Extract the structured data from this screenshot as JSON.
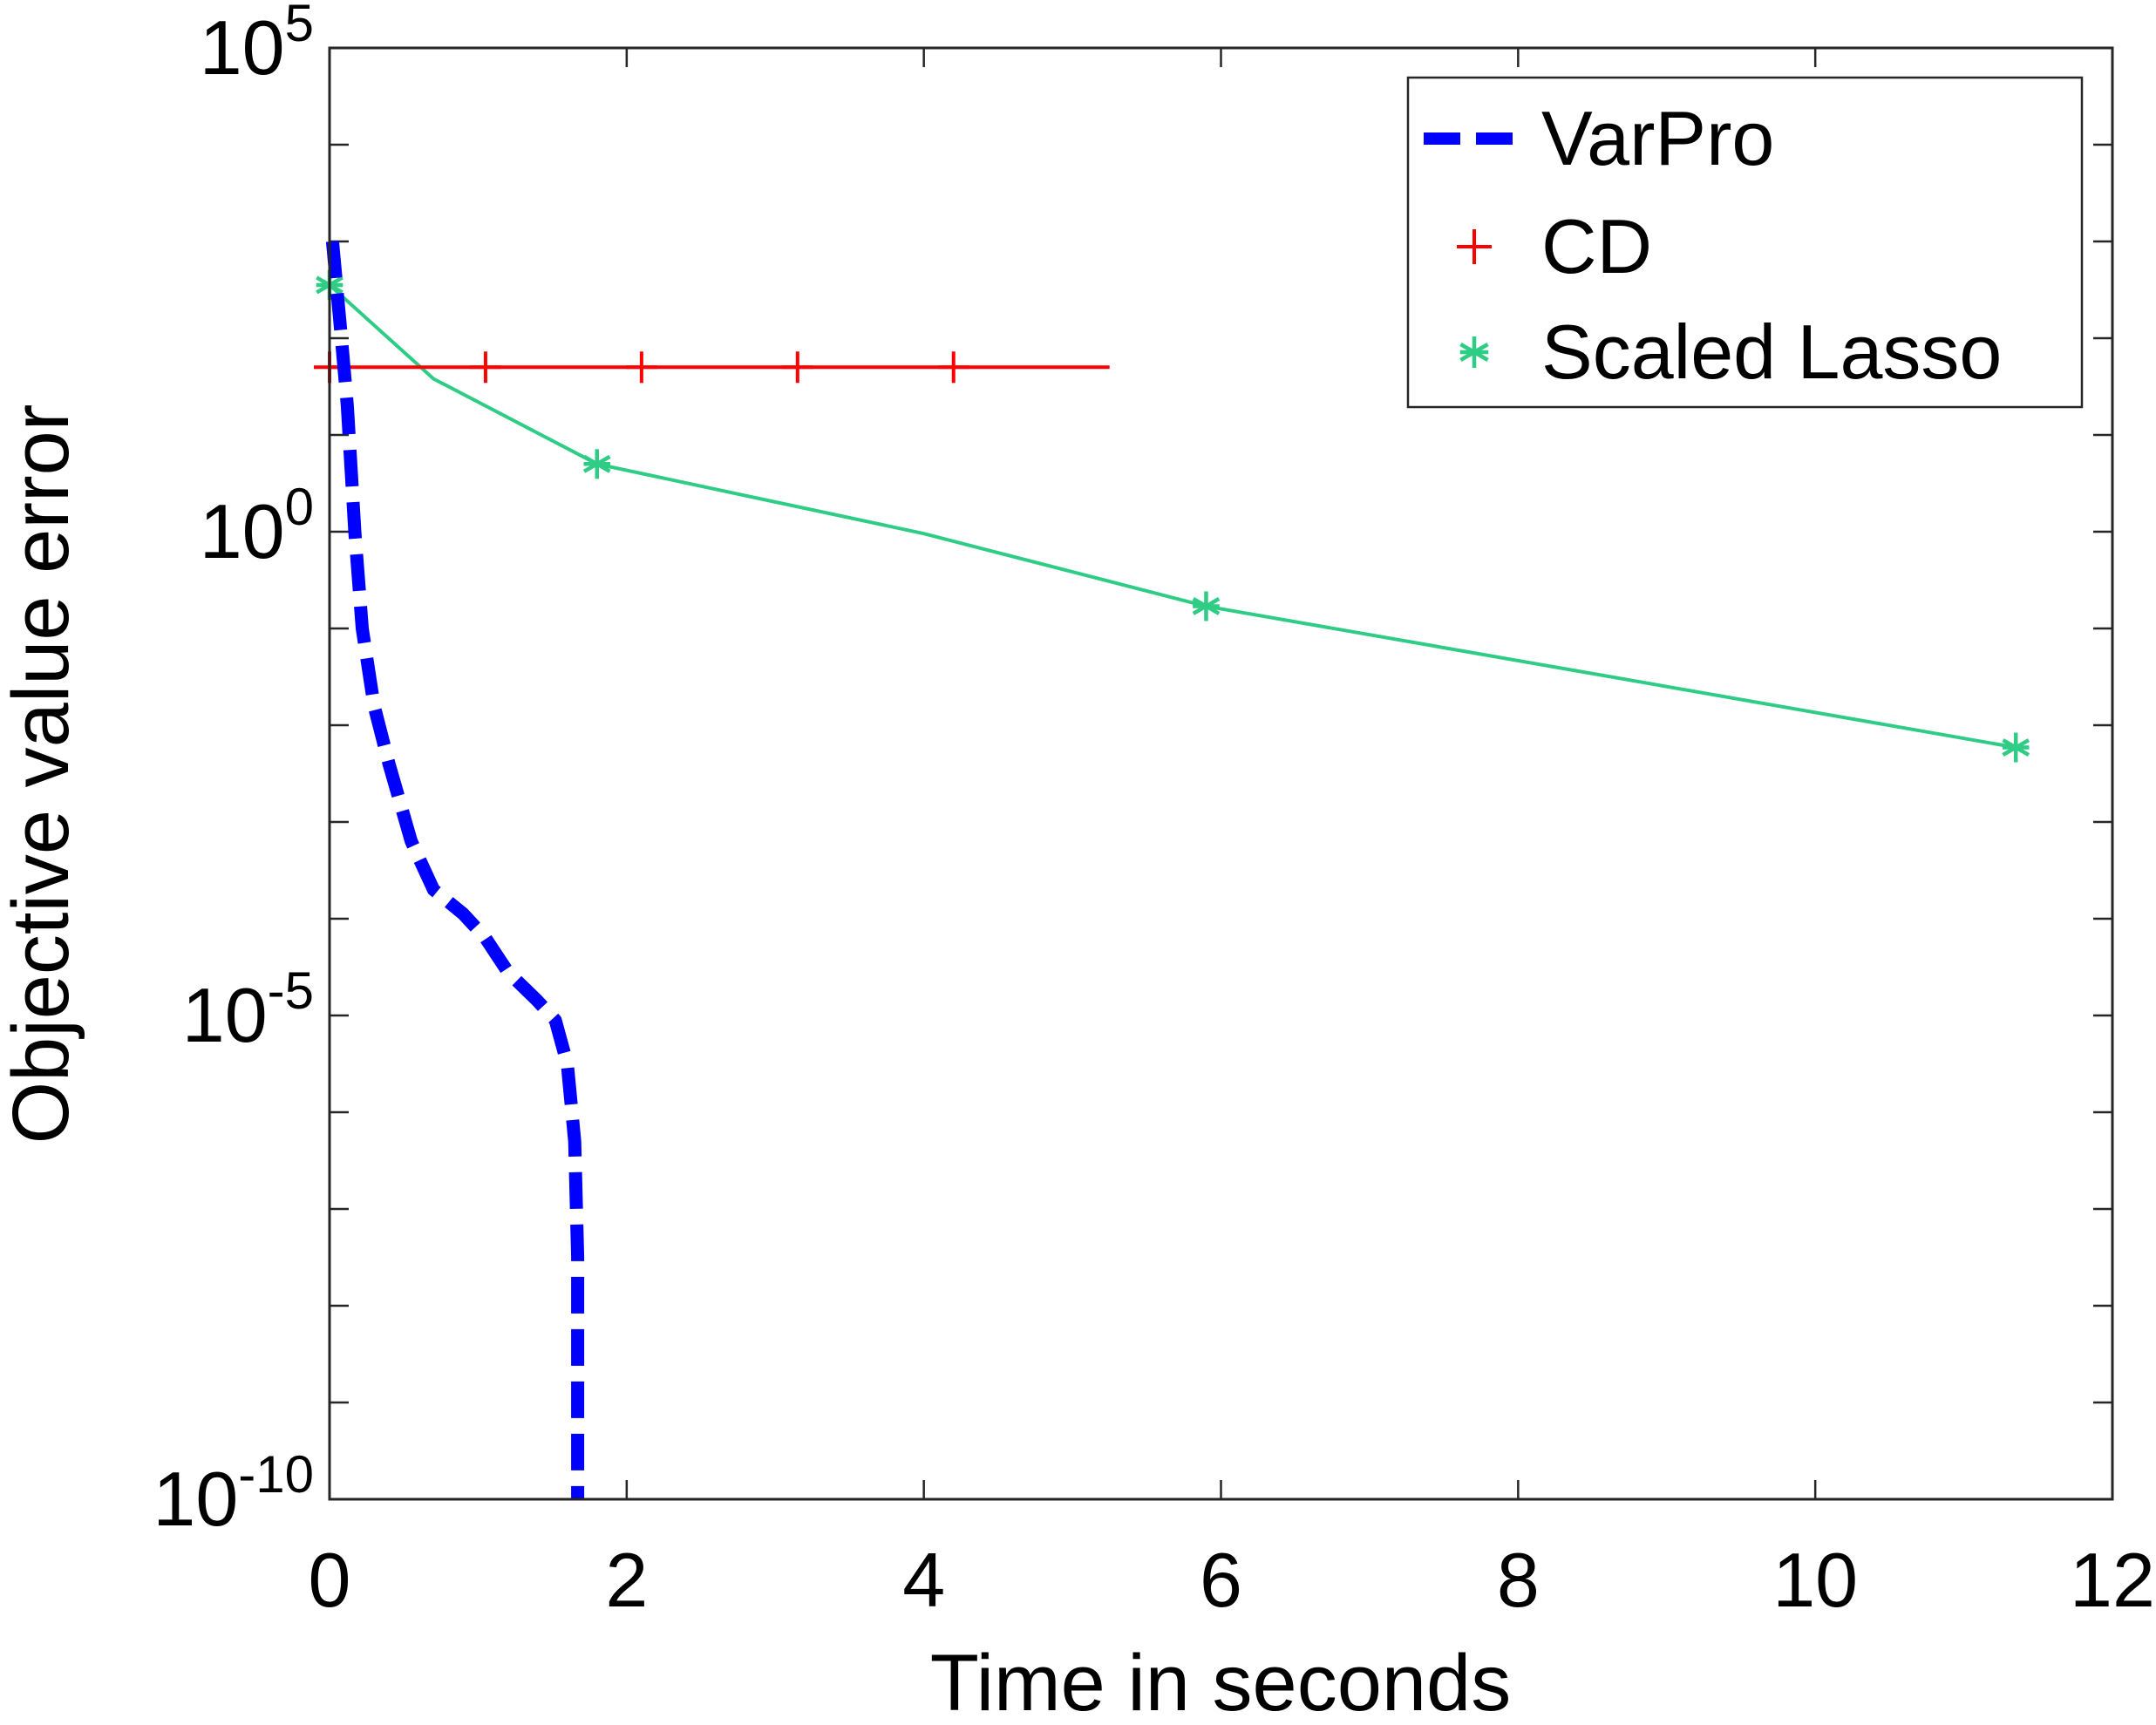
{
  "chart_data": {
    "type": "line",
    "title": "",
    "xlabel": "Time in seconds",
    "ylabel": "Objective value error",
    "xlim": [
      0,
      12
    ],
    "ylim_log10": [
      -10,
      5
    ],
    "yscale": "log",
    "x_ticks": [
      0,
      2,
      4,
      6,
      8,
      10,
      12
    ],
    "x_tick_labels": [
      "0",
      "2",
      "4",
      "6",
      "8",
      "10",
      "12"
    ],
    "y_ticks": [
      {
        "base": "10",
        "exp": "5",
        "log10": 5
      },
      {
        "base": "10",
        "exp": "0",
        "log10": 0
      },
      {
        "base": "10",
        "exp": "-5",
        "log10": -5
      },
      {
        "base": "10",
        "exp": "-10",
        "log10": -10
      }
    ],
    "legend_position": "top-right",
    "series": [
      {
        "name": "VarPro",
        "color": "#0000ff",
        "style": "dashed-thick",
        "marker": "none",
        "points": [
          [
            0.02,
            3.0
          ],
          [
            0.05,
            2.5
          ],
          [
            0.08,
            2.0
          ],
          [
            0.12,
            1.3
          ],
          [
            0.17,
            0.0
          ],
          [
            0.22,
            -1.0
          ],
          [
            0.3,
            -1.8
          ],
          [
            0.4,
            -2.4
          ],
          [
            0.55,
            -3.2
          ],
          [
            0.7,
            -3.7
          ],
          [
            0.9,
            -3.95
          ],
          [
            1.05,
            -4.2
          ],
          [
            1.2,
            -4.55
          ],
          [
            1.4,
            -4.85
          ],
          [
            1.52,
            -5.05
          ],
          [
            1.6,
            -5.5
          ],
          [
            1.65,
            -6.3
          ],
          [
            1.67,
            -7.5
          ],
          [
            1.67,
            -9.0
          ],
          [
            1.67,
            -10.0
          ]
        ]
      },
      {
        "name": "CD",
        "color": "#ff0000",
        "style": "solid",
        "marker": "plus",
        "points": [
          [
            0.0,
            1.7
          ],
          [
            1.05,
            1.7
          ],
          [
            2.1,
            1.7
          ],
          [
            3.15,
            1.7
          ],
          [
            4.2,
            1.7
          ],
          [
            5.25,
            1.7
          ]
        ],
        "marker_points": [
          [
            0.0,
            1.7
          ],
          [
            1.05,
            1.7
          ],
          [
            2.1,
            1.7
          ],
          [
            3.15,
            1.7
          ],
          [
            4.2,
            1.7
          ]
        ]
      },
      {
        "name": "Scaled Lasso",
        "color": "#2ecc84",
        "style": "solid",
        "marker": "asterisk",
        "points": [
          [
            0.0,
            2.55
          ],
          [
            0.7,
            1.58
          ],
          [
            1.8,
            0.7
          ],
          [
            4.0,
            -0.02
          ],
          [
            5.9,
            -0.77
          ],
          [
            11.35,
            -2.23
          ]
        ],
        "marker_points": [
          [
            0.0,
            2.55
          ],
          [
            1.8,
            0.7
          ],
          [
            5.9,
            -0.77
          ],
          [
            11.35,
            -2.23
          ]
        ]
      }
    ]
  }
}
